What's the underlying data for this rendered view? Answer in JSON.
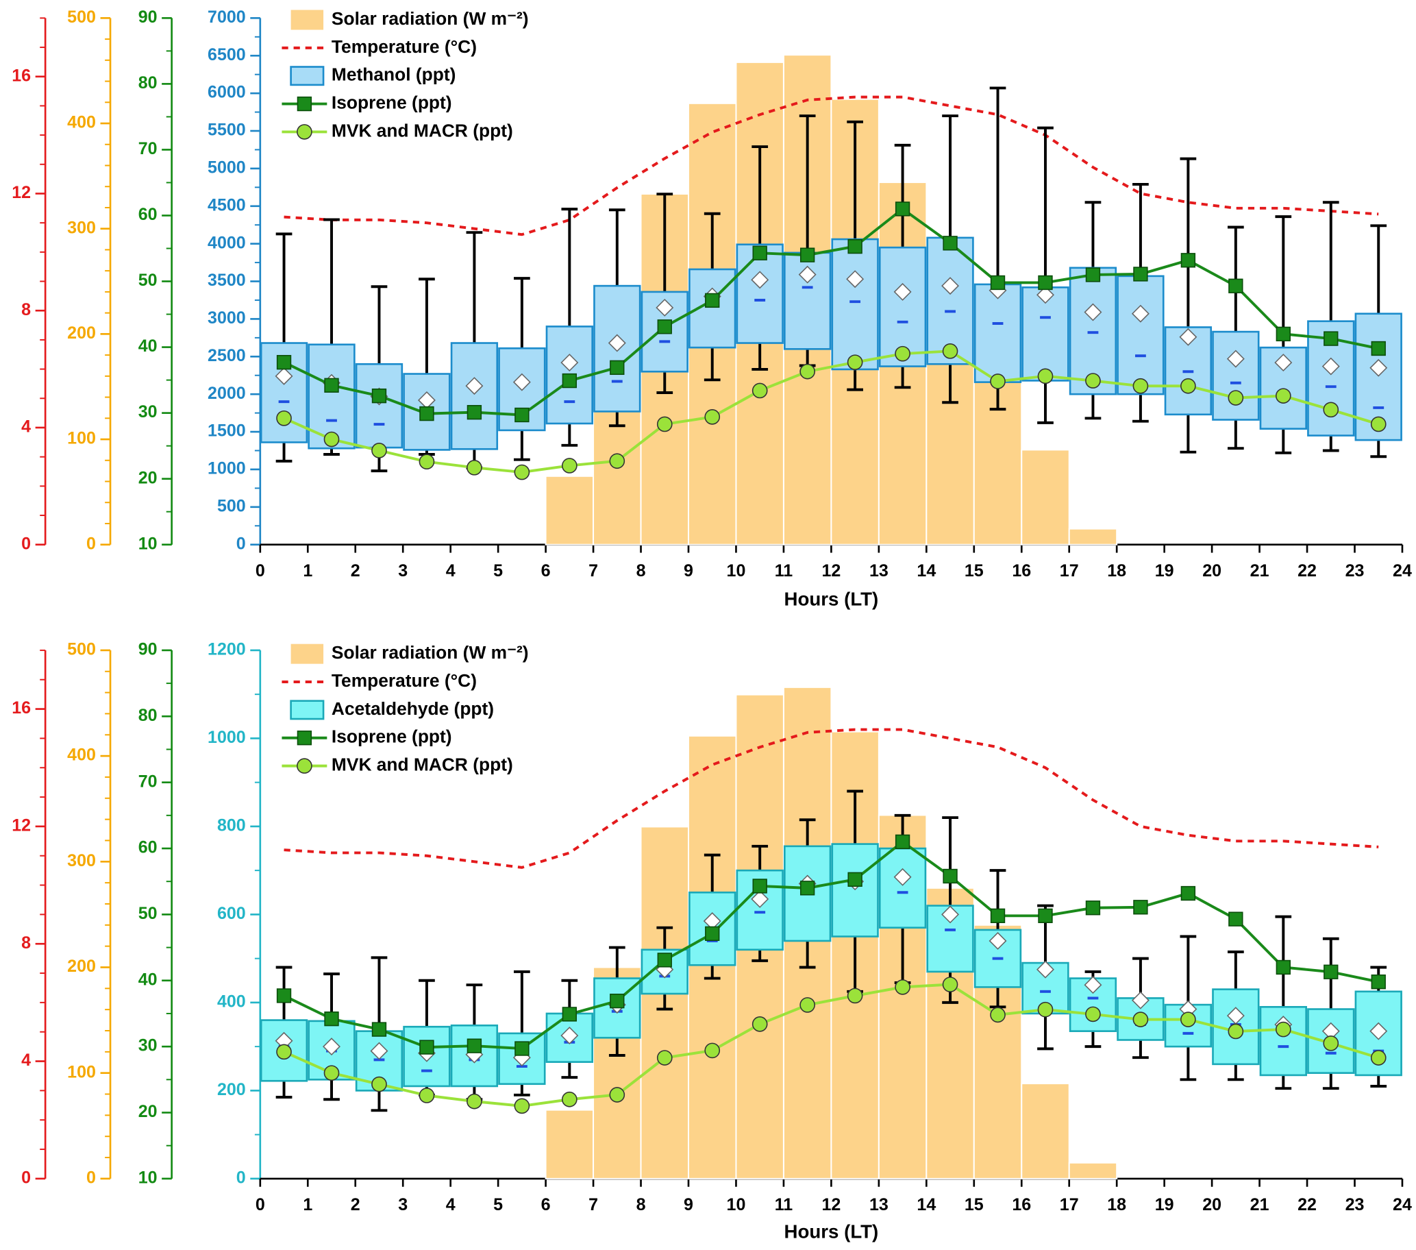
{
  "chart_data": [
    {
      "type": "combo",
      "xlabel": "Hours (LT)",
      "xlim": [
        0,
        24
      ],
      "xticks": [
        0,
        1,
        2,
        3,
        4,
        5,
        6,
        7,
        8,
        9,
        10,
        11,
        12,
        13,
        14,
        15,
        16,
        17,
        18,
        19,
        20,
        21,
        22,
        23,
        24
      ],
      "ylim": [
        0,
        7000
      ],
      "yticks": [
        0,
        500,
        1000,
        1500,
        2000,
        2500,
        3000,
        3500,
        4000,
        4500,
        5000,
        5500,
        6000,
        6500,
        7000
      ],
      "ycolor": "#1f86c6",
      "y2lim": [
        0,
        500
      ],
      "y2ticks": [
        0,
        100,
        200,
        300,
        400,
        500
      ],
      "y2color": "#f5a800",
      "y3lim": [
        10,
        90
      ],
      "y3ticks": [
        10,
        20,
        30,
        40,
        50,
        60,
        70,
        80,
        90
      ],
      "y3color": "#138a13",
      "y4lim": [
        0,
        18
      ],
      "y4ticks": [
        0,
        4,
        8,
        12,
        16
      ],
      "y4color": "#e41a1c",
      "x": [
        0.5,
        1.5,
        2.5,
        3.5,
        4.5,
        5.5,
        6.5,
        7.5,
        8.5,
        9.5,
        10.5,
        11.5,
        12.5,
        13.5,
        14.5,
        15.5,
        16.5,
        17.5,
        18.5,
        19.5,
        20.5,
        21.5,
        22.5,
        23.5
      ],
      "series": [
        {
          "name": "Solar radiation (W m⁻²)",
          "type": "bar",
          "axis": "y2",
          "color": "#fdd38a",
          "values": [
            0,
            0,
            0,
            0,
            0,
            0,
            65,
            200,
            333,
            419,
            458,
            465,
            423,
            344,
            275,
            240,
            90,
            15,
            0,
            0,
            0,
            0,
            0,
            0
          ]
        },
        {
          "name": "Temperature (°C)",
          "type": "line",
          "dashed": true,
          "axis": "y4",
          "color": "#e41a1c",
          "values": [
            11.2,
            11.1,
            11.1,
            11.0,
            10.8,
            10.6,
            11.1,
            12.2,
            13.2,
            14.1,
            14.7,
            15.2,
            15.3,
            15.3,
            15.0,
            14.7,
            14.0,
            12.9,
            12.0,
            11.7,
            11.5,
            11.5,
            11.4,
            11.3
          ]
        },
        {
          "name": "Methanol (ppt)",
          "type": "box",
          "axis": "y",
          "color": "#a8dcf7",
          "edgecolor": "#1c8ccc",
          "median_color": "#1f4fe0",
          "low": [
            1110,
            1200,
            980,
            1200,
            1020,
            1130,
            1320,
            1580,
            2020,
            2190,
            2330,
            2380,
            2060,
            2090,
            1890,
            1800,
            1620,
            1680,
            1640,
            1230,
            1280,
            1220,
            1250,
            1170
          ],
          "q1": [
            1360,
            1280,
            1290,
            1260,
            1270,
            1520,
            1610,
            1770,
            2300,
            2620,
            2680,
            2600,
            2330,
            2370,
            2400,
            2160,
            2180,
            2000,
            2000,
            1730,
            1660,
            1540,
            1450,
            1390
          ],
          "median": [
            1900,
            1650,
            1600,
            1700,
            1700,
            1700,
            1900,
            2170,
            2700,
            3200,
            3250,
            3420,
            3230,
            2960,
            3100,
            2940,
            3020,
            2820,
            2510,
            2300,
            2150,
            2000,
            2100,
            1820
          ],
          "q3": [
            2680,
            2660,
            2400,
            2270,
            2680,
            2610,
            2900,
            3440,
            3360,
            3660,
            3990,
            3880,
            4060,
            3950,
            4080,
            3460,
            3420,
            3680,
            3570,
            2890,
            2830,
            2620,
            2970,
            3070
          ],
          "high": [
            4130,
            4320,
            3430,
            3530,
            4150,
            3540,
            4460,
            4450,
            4660,
            4400,
            5290,
            5700,
            5620,
            5310,
            5700,
            6070,
            5540,
            4550,
            4790,
            5130,
            4220,
            4360,
            4550,
            4240
          ],
          "mean": [
            2240,
            2150,
            1970,
            1920,
            2110,
            2160,
            2420,
            2680,
            3150,
            3300,
            3520,
            3590,
            3530,
            3360,
            3440,
            3380,
            3320,
            3090,
            3070,
            2760,
            2470,
            2420,
            2370,
            2350
          ]
        },
        {
          "name": "Isoprene (ppt)",
          "type": "line",
          "marker": "square",
          "axis": "y3",
          "color": "#1a8a1a",
          "values": [
            37.7,
            34.2,
            32.6,
            29.9,
            30.1,
            29.7,
            34.9,
            36.9,
            43.1,
            47.1,
            54.3,
            54.0,
            55.3,
            61.0,
            55.8,
            49.8,
            49.8,
            51.0,
            51.1,
            53.2,
            49.3,
            42.0,
            41.3,
            39.8
          ]
        },
        {
          "name": "MVK and MACR (ppt)",
          "type": "line",
          "marker": "circle",
          "axis": "y3",
          "color": "#9be23a",
          "values": [
            29.2,
            26.0,
            24.3,
            22.6,
            21.7,
            21.0,
            22.0,
            22.7,
            28.3,
            29.4,
            33.4,
            36.3,
            37.7,
            39.0,
            39.4,
            34.8,
            35.6,
            34.9,
            34.1,
            34.1,
            32.3,
            32.6,
            30.5,
            28.3
          ]
        }
      ]
    },
    {
      "type": "combo",
      "xlabel": "Hours (LT)",
      "xlim": [
        0,
        24
      ],
      "xticks": [
        0,
        1,
        2,
        3,
        4,
        5,
        6,
        7,
        8,
        9,
        10,
        11,
        12,
        13,
        14,
        15,
        16,
        17,
        18,
        19,
        20,
        21,
        22,
        23,
        24
      ],
      "ylim": [
        0,
        1200
      ],
      "yticks": [
        0,
        200,
        400,
        600,
        800,
        1000,
        1200
      ],
      "ycolor": "#22b5c7",
      "y2lim": [
        0,
        500
      ],
      "y2ticks": [
        0,
        100,
        200,
        300,
        400,
        500
      ],
      "y2color": "#f5a800",
      "y3lim": [
        10,
        90
      ],
      "y3ticks": [
        10,
        20,
        30,
        40,
        50,
        60,
        70,
        80,
        90
      ],
      "y3color": "#138a13",
      "y4lim": [
        0,
        18
      ],
      "y4ticks": [
        0,
        4,
        8,
        12,
        16
      ],
      "y4color": "#e41a1c",
      "x": [
        0.5,
        1.5,
        2.5,
        3.5,
        4.5,
        5.5,
        6.5,
        7.5,
        8.5,
        9.5,
        10.5,
        11.5,
        12.5,
        13.5,
        14.5,
        15.5,
        16.5,
        17.5,
        18.5,
        19.5,
        20.5,
        21.5,
        22.5,
        23.5
      ],
      "series": [
        {
          "name": "Solar radiation (W m⁻²)",
          "type": "bar",
          "axis": "y2",
          "color": "#fdd38a",
          "values": [
            0,
            0,
            0,
            0,
            0,
            0,
            65,
            200,
            333,
            419,
            458,
            465,
            423,
            344,
            275,
            240,
            90,
            15,
            0,
            0,
            0,
            0,
            0,
            0
          ]
        },
        {
          "name": "Temperature (°C)",
          "type": "line",
          "dashed": true,
          "axis": "y4",
          "color": "#e41a1c",
          "values": [
            11.2,
            11.1,
            11.1,
            11.0,
            10.8,
            10.6,
            11.1,
            12.2,
            13.2,
            14.1,
            14.7,
            15.2,
            15.3,
            15.3,
            15.0,
            14.7,
            14.0,
            12.9,
            12.0,
            11.7,
            11.5,
            11.5,
            11.4,
            11.3
          ]
        },
        {
          "name": "Acetaldehyde (ppt)",
          "type": "box",
          "axis": "y",
          "color": "#7ef5f5",
          "edgecolor": "#1aa9b8",
          "median_color": "#1f4fe0",
          "low": [
            185,
            180,
            155,
            190,
            180,
            190,
            230,
            280,
            385,
            455,
            495,
            480,
            425,
            445,
            400,
            390,
            295,
            300,
            275,
            225,
            225,
            205,
            205,
            210
          ],
          "q1": [
            222,
            225,
            200,
            210,
            210,
            215,
            265,
            320,
            420,
            485,
            520,
            540,
            550,
            570,
            470,
            435,
            375,
            335,
            315,
            300,
            260,
            235,
            240,
            235
          ],
          "median": [
            300,
            290,
            270,
            245,
            270,
            255,
            310,
            380,
            460,
            540,
            605,
            665,
            670,
            650,
            565,
            500,
            425,
            410,
            350,
            330,
            350,
            300,
            285,
            290
          ],
          "q3": [
            360,
            358,
            335,
            345,
            348,
            330,
            375,
            455,
            520,
            650,
            700,
            755,
            760,
            750,
            620,
            565,
            490,
            455,
            410,
            395,
            430,
            390,
            385,
            425
          ],
          "high": [
            480,
            465,
            502,
            450,
            440,
            470,
            450,
            525,
            570,
            735,
            755,
            815,
            880,
            825,
            820,
            700,
            620,
            470,
            500,
            550,
            515,
            595,
            545,
            480
          ],
          "mean": [
            313,
            300,
            290,
            285,
            282,
            275,
            325,
            395,
            475,
            585,
            635,
            670,
            675,
            685,
            600,
            540,
            475,
            440,
            405,
            385,
            370,
            350,
            335,
            335
          ]
        },
        {
          "name": "Isoprene (ppt)",
          "type": "line",
          "marker": "square",
          "axis": "y3",
          "color": "#1a8a1a",
          "values": [
            37.7,
            34.2,
            32.6,
            29.9,
            30.1,
            29.7,
            34.9,
            36.9,
            43.1,
            47.1,
            54.3,
            54.0,
            55.3,
            61.0,
            55.8,
            49.8,
            49.8,
            51.0,
            51.1,
            53.2,
            49.3,
            42.0,
            41.3,
            39.8
          ]
        },
        {
          "name": "MVK and MACR (ppt)",
          "type": "line",
          "marker": "circle",
          "axis": "y3",
          "color": "#9be23a",
          "values": [
            29.2,
            26.0,
            24.3,
            22.6,
            21.7,
            21.0,
            22.0,
            22.7,
            28.3,
            29.4,
            33.4,
            36.3,
            37.7,
            39.0,
            39.4,
            34.8,
            35.6,
            34.9,
            34.1,
            34.1,
            32.3,
            32.6,
            30.5,
            28.3
          ]
        }
      ]
    }
  ]
}
